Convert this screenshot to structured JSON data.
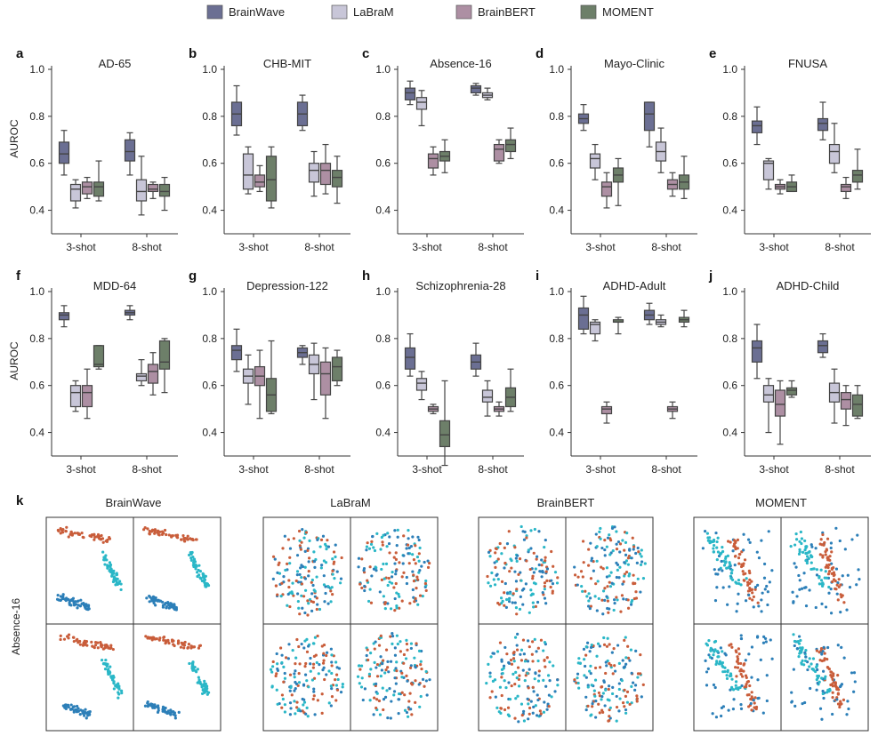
{
  "colors": {
    "BrainWave": "#6b6f93",
    "LaBraM": "#c8c6d8",
    "BrainBERT": "#ad8fa3",
    "MOMENT": "#6d7f69",
    "scatter": [
      "#c95d3a",
      "#2c7fb8",
      "#2ab7c7"
    ]
  },
  "legend": [
    {
      "name": "BrainWave",
      "color": "#6b6f93"
    },
    {
      "name": "LaBraM",
      "color": "#c8c6d8"
    },
    {
      "name": "BrainBERT",
      "color": "#ad8fa3"
    },
    {
      "name": "MOMENT",
      "color": "#6d7f69"
    }
  ],
  "y_axis_label": "AUROC",
  "y_ticks": [
    "1.0",
    "0.8",
    "0.6",
    "0.4"
  ],
  "x_ticks": [
    "3-shot",
    "8-shot"
  ],
  "chart_data": [
    {
      "letter": "a",
      "title": "AD-65",
      "type": "box",
      "ylim": [
        0.3,
        1.0
      ],
      "groups": [
        "3-shot",
        "8-shot"
      ],
      "series": [
        {
          "name": "BrainWave",
          "boxes": [
            [
              0.55,
              0.6,
              0.64,
              0.69,
              0.74
            ],
            [
              0.55,
              0.61,
              0.65,
              0.7,
              0.73
            ]
          ]
        },
        {
          "name": "LaBraM",
          "boxes": [
            [
              0.41,
              0.44,
              0.49,
              0.51,
              0.53
            ],
            [
              0.38,
              0.44,
              0.48,
              0.53,
              0.63
            ]
          ]
        },
        {
          "name": "BrainBERT",
          "boxes": [
            [
              0.45,
              0.47,
              0.5,
              0.52,
              0.54
            ],
            [
              0.45,
              0.48,
              0.49,
              0.51,
              0.52
            ]
          ]
        },
        {
          "name": "MOMENT",
          "boxes": [
            [
              0.44,
              0.46,
              0.5,
              0.52,
              0.61
            ],
            [
              0.4,
              0.46,
              0.48,
              0.51,
              0.54
            ]
          ]
        }
      ]
    },
    {
      "letter": "b",
      "title": "CHB-MIT",
      "type": "box",
      "ylim": [
        0.3,
        1.0
      ],
      "groups": [
        "3-shot",
        "8-shot"
      ],
      "series": [
        {
          "name": "BrainWave",
          "boxes": [
            [
              0.72,
              0.76,
              0.81,
              0.86,
              0.93
            ],
            [
              0.74,
              0.76,
              0.81,
              0.86,
              0.89
            ]
          ]
        },
        {
          "name": "LaBraM",
          "boxes": [
            [
              0.47,
              0.49,
              0.55,
              0.64,
              0.67
            ],
            [
              0.46,
              0.52,
              0.57,
              0.6,
              0.65
            ]
          ]
        },
        {
          "name": "BrainBERT",
          "boxes": [
            [
              0.48,
              0.5,
              0.52,
              0.55,
              0.59
            ],
            [
              0.47,
              0.51,
              0.57,
              0.6,
              0.68
            ]
          ]
        },
        {
          "name": "MOMENT",
          "boxes": [
            [
              0.41,
              0.44,
              0.53,
              0.63,
              0.67
            ],
            [
              0.43,
              0.5,
              0.54,
              0.57,
              0.63
            ]
          ]
        }
      ]
    },
    {
      "letter": "c",
      "title": "Absence-16",
      "type": "box",
      "ylim": [
        0.3,
        1.0
      ],
      "groups": [
        "3-shot",
        "8-shot"
      ],
      "series": [
        {
          "name": "BrainWave",
          "boxes": [
            [
              0.85,
              0.87,
              0.9,
              0.92,
              0.95
            ],
            [
              0.89,
              0.9,
              0.92,
              0.93,
              0.94
            ]
          ]
        },
        {
          "name": "LaBraM",
          "boxes": [
            [
              0.76,
              0.83,
              0.86,
              0.88,
              0.91
            ],
            [
              0.87,
              0.88,
              0.89,
              0.9,
              0.92
            ]
          ]
        },
        {
          "name": "BrainBERT",
          "boxes": [
            [
              0.55,
              0.58,
              0.62,
              0.64,
              0.67
            ],
            [
              0.6,
              0.61,
              0.66,
              0.68,
              0.7
            ]
          ]
        },
        {
          "name": "MOMENT",
          "boxes": [
            [
              0.56,
              0.61,
              0.63,
              0.65,
              0.7
            ],
            [
              0.62,
              0.65,
              0.68,
              0.7,
              0.75
            ]
          ]
        }
      ]
    },
    {
      "letter": "d",
      "title": "Mayo-Clinic",
      "type": "box",
      "ylim": [
        0.3,
        1.0
      ],
      "groups": [
        "3-shot",
        "8-shot"
      ],
      "series": [
        {
          "name": "BrainWave",
          "boxes": [
            [
              0.74,
              0.77,
              0.79,
              0.81,
              0.85
            ],
            [
              0.67,
              0.74,
              0.81,
              0.86,
              0.86
            ]
          ]
        },
        {
          "name": "LaBraM",
          "boxes": [
            [
              0.53,
              0.58,
              0.62,
              0.64,
              0.68
            ],
            [
              0.56,
              0.61,
              0.65,
              0.69,
              0.75
            ]
          ]
        },
        {
          "name": "BrainBERT",
          "boxes": [
            [
              0.41,
              0.46,
              0.5,
              0.52,
              0.56
            ],
            [
              0.46,
              0.49,
              0.51,
              0.53,
              0.56
            ]
          ]
        },
        {
          "name": "MOMENT",
          "boxes": [
            [
              0.42,
              0.52,
              0.55,
              0.58,
              0.62
            ],
            [
              0.45,
              0.49,
              0.52,
              0.55,
              0.63
            ]
          ]
        }
      ]
    },
    {
      "letter": "e",
      "title": "FNUSA",
      "type": "box",
      "ylim": [
        0.3,
        1.0
      ],
      "groups": [
        "3-shot",
        "8-shot"
      ],
      "series": [
        {
          "name": "BrainWave",
          "boxes": [
            [
              0.68,
              0.73,
              0.76,
              0.78,
              0.84
            ],
            [
              0.7,
              0.74,
              0.77,
              0.79,
              0.86
            ]
          ]
        },
        {
          "name": "LaBraM",
          "boxes": [
            [
              0.49,
              0.53,
              0.6,
              0.61,
              0.62
            ],
            [
              0.56,
              0.6,
              0.65,
              0.68,
              0.77
            ]
          ]
        },
        {
          "name": "BrainBERT",
          "boxes": [
            [
              0.47,
              0.49,
              0.5,
              0.51,
              0.53
            ],
            [
              0.45,
              0.48,
              0.5,
              0.51,
              0.54
            ]
          ]
        },
        {
          "name": "MOMENT",
          "boxes": [
            [
              0.48,
              0.48,
              0.5,
              0.52,
              0.55
            ],
            [
              0.49,
              0.52,
              0.55,
              0.57,
              0.66
            ]
          ]
        }
      ]
    },
    {
      "letter": "f",
      "title": "MDD-64",
      "type": "box",
      "ylim": [
        0.3,
        1.0
      ],
      "groups": [
        "3-shot",
        "8-shot"
      ],
      "series": [
        {
          "name": "BrainWave",
          "boxes": [
            [
              0.85,
              0.88,
              0.9,
              0.91,
              0.94
            ],
            [
              0.88,
              0.9,
              0.91,
              0.92,
              0.94
            ]
          ]
        },
        {
          "name": "LaBraM",
          "boxes": [
            [
              0.49,
              0.51,
              0.57,
              0.6,
              0.62
            ],
            [
              0.6,
              0.62,
              0.64,
              0.65,
              0.71
            ]
          ]
        },
        {
          "name": "BrainBERT",
          "boxes": [
            [
              0.46,
              0.51,
              0.57,
              0.6,
              0.67
            ],
            [
              0.56,
              0.61,
              0.66,
              0.69,
              0.74
            ]
          ]
        },
        {
          "name": "MOMENT",
          "boxes": [
            [
              0.67,
              0.68,
              0.69,
              0.77,
              0.77
            ],
            [
              0.57,
              0.67,
              0.7,
              0.79,
              0.8
            ]
          ]
        }
      ]
    },
    {
      "letter": "g",
      "title": "Depression-122",
      "type": "box",
      "ylim": [
        0.3,
        1.0
      ],
      "groups": [
        "3-shot",
        "8-shot"
      ],
      "series": [
        {
          "name": "BrainWave",
          "boxes": [
            [
              0.66,
              0.71,
              0.75,
              0.77,
              0.84
            ],
            [
              0.69,
              0.72,
              0.74,
              0.76,
              0.77
            ]
          ]
        },
        {
          "name": "LaBraM",
          "boxes": [
            [
              0.52,
              0.61,
              0.64,
              0.67,
              0.73
            ],
            [
              0.54,
              0.65,
              0.69,
              0.73,
              0.78
            ]
          ]
        },
        {
          "name": "BrainBERT",
          "boxes": [
            [
              0.46,
              0.6,
              0.64,
              0.68,
              0.75
            ],
            [
              0.46,
              0.56,
              0.65,
              0.7,
              0.76
            ]
          ]
        },
        {
          "name": "MOMENT",
          "boxes": [
            [
              0.48,
              0.49,
              0.56,
              0.63,
              0.79
            ],
            [
              0.6,
              0.62,
              0.68,
              0.72,
              0.75
            ]
          ]
        }
      ]
    },
    {
      "letter": "h",
      "title": "Schizophrenia-28",
      "type": "box",
      "ylim": [
        0.3,
        1.0
      ],
      "groups": [
        "3-shot",
        "8-shot"
      ],
      "series": [
        {
          "name": "BrainWave",
          "boxes": [
            [
              0.64,
              0.67,
              0.72,
              0.76,
              0.82
            ],
            [
              0.64,
              0.67,
              0.7,
              0.73,
              0.78
            ]
          ]
        },
        {
          "name": "LaBraM",
          "boxes": [
            [
              0.54,
              0.58,
              0.61,
              0.63,
              0.66
            ],
            [
              0.47,
              0.53,
              0.55,
              0.58,
              0.62
            ]
          ]
        },
        {
          "name": "BrainBERT",
          "boxes": [
            [
              0.48,
              0.49,
              0.5,
              0.51,
              0.52
            ],
            [
              0.47,
              0.49,
              0.5,
              0.51,
              0.53
            ]
          ]
        },
        {
          "name": "MOMENT",
          "boxes": [
            [
              0.26,
              0.34,
              0.39,
              0.45,
              0.62
            ],
            [
              0.49,
              0.51,
              0.55,
              0.59,
              0.67
            ]
          ]
        }
      ]
    },
    {
      "letter": "i",
      "title": "ADHD-Adult",
      "type": "box",
      "ylim": [
        0.3,
        1.0
      ],
      "groups": [
        "3-shot",
        "8-shot"
      ],
      "series": [
        {
          "name": "BrainWave",
          "boxes": [
            [
              0.82,
              0.84,
              0.9,
              0.93,
              0.98
            ],
            [
              0.86,
              0.88,
              0.9,
              0.92,
              0.95
            ]
          ]
        },
        {
          "name": "LaBraM",
          "boxes": [
            [
              0.79,
              0.82,
              0.86,
              0.87,
              0.88
            ],
            [
              0.85,
              0.86,
              0.87,
              0.88,
              0.9
            ]
          ]
        },
        {
          "name": "BrainBERT",
          "boxes": [
            [
              0.44,
              0.48,
              0.5,
              0.51,
              0.53
            ],
            [
              0.46,
              0.49,
              0.5,
              0.51,
              0.53
            ]
          ]
        },
        {
          "name": "MOMENT",
          "boxes": [
            [
              0.82,
              0.87,
              0.87,
              0.88,
              0.89
            ],
            [
              0.85,
              0.87,
              0.88,
              0.89,
              0.92
            ]
          ]
        }
      ]
    },
    {
      "letter": "j",
      "title": "ADHD-Child",
      "type": "box",
      "ylim": [
        0.3,
        1.0
      ],
      "groups": [
        "3-shot",
        "8-shot"
      ],
      "series": [
        {
          "name": "BrainWave",
          "boxes": [
            [
              0.63,
              0.7,
              0.76,
              0.79,
              0.86
            ],
            [
              0.72,
              0.74,
              0.77,
              0.79,
              0.82
            ]
          ]
        },
        {
          "name": "LaBraM",
          "boxes": [
            [
              0.4,
              0.53,
              0.56,
              0.6,
              0.63
            ],
            [
              0.44,
              0.53,
              0.57,
              0.61,
              0.67
            ]
          ]
        },
        {
          "name": "BrainBERT",
          "boxes": [
            [
              0.35,
              0.47,
              0.52,
              0.58,
              0.62
            ],
            [
              0.43,
              0.5,
              0.54,
              0.57,
              0.6
            ]
          ]
        },
        {
          "name": "MOMENT",
          "boxes": [
            [
              0.55,
              0.56,
              0.58,
              0.59,
              0.62
            ],
            [
              0.46,
              0.47,
              0.52,
              0.56,
              0.6
            ]
          ]
        }
      ]
    },
    {
      "letter": "k",
      "title": "",
      "type": "scatter",
      "row_label": "Absence-16",
      "panels": [
        "BrainWave",
        "LaBraM",
        "BrainBERT",
        "MOMENT"
      ]
    }
  ]
}
